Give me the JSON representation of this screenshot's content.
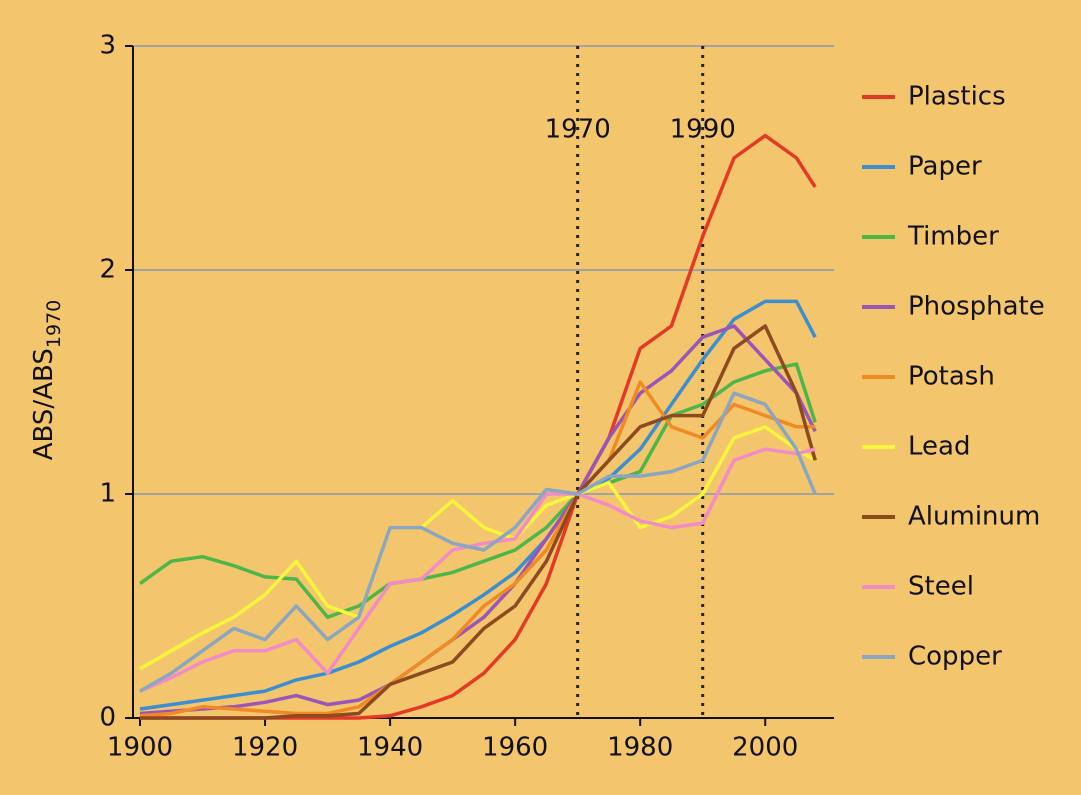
{
  "chart_data": {
    "type": "line",
    "ylabel": "ABS/ABS",
    "ylabel_sub": "1970",
    "x": [
      1900,
      1905,
      1910,
      1915,
      1920,
      1925,
      1930,
      1935,
      1940,
      1945,
      1950,
      1955,
      1960,
      1965,
      1970,
      1975,
      1980,
      1985,
      1990,
      1995,
      2000,
      2005,
      2008
    ],
    "xlim": [
      1900,
      2011
    ],
    "ylim": [
      0,
      3
    ],
    "xticks": [
      1900,
      1920,
      1940,
      1960,
      1980,
      2000
    ],
    "yticks": [
      0,
      1,
      2,
      3
    ],
    "grid": true,
    "vlines": [
      1970,
      1990
    ],
    "legend": "right",
    "series": [
      {
        "name": "Plastics",
        "color": "#e23a26",
        "values": [
          0,
          0,
          0,
          0,
          0,
          0,
          0,
          0,
          0.01,
          0.05,
          0.1,
          0.2,
          0.35,
          0.6,
          1.0,
          1.25,
          1.65,
          1.75,
          2.15,
          2.5,
          2.6,
          2.5,
          2.37
        ]
      },
      {
        "name": "Paper",
        "color": "#3b8ed0",
        "values": [
          0.04,
          0.06,
          0.08,
          0.1,
          0.12,
          0.17,
          0.2,
          0.25,
          0.32,
          0.38,
          0.46,
          0.55,
          0.65,
          0.8,
          1.0,
          1.07,
          1.2,
          1.4,
          1.6,
          1.78,
          1.86,
          1.86,
          1.7
        ]
      },
      {
        "name": "Timber",
        "color": "#4cb648",
        "values": [
          0.6,
          0.7,
          0.72,
          0.68,
          0.63,
          0.62,
          0.45,
          0.5,
          0.6,
          0.62,
          0.65,
          0.7,
          0.75,
          0.85,
          1.0,
          1.05,
          1.1,
          1.35,
          1.4,
          1.5,
          1.55,
          1.58,
          1.32
        ]
      },
      {
        "name": "Phosphate",
        "color": "#9a55b8",
        "values": [
          0.02,
          0.03,
          0.04,
          0.05,
          0.07,
          0.1,
          0.06,
          0.08,
          0.15,
          0.25,
          0.35,
          0.45,
          0.6,
          0.8,
          1.0,
          1.25,
          1.45,
          1.55,
          1.7,
          1.75,
          1.6,
          1.45,
          1.28
        ]
      },
      {
        "name": "Potash",
        "color": "#f08a24",
        "values": [
          0.01,
          0.02,
          0.05,
          0.04,
          0.03,
          0.02,
          0.02,
          0.05,
          0.15,
          0.25,
          0.35,
          0.5,
          0.6,
          0.75,
          1.0,
          1.15,
          1.5,
          1.3,
          1.25,
          1.4,
          1.35,
          1.3,
          1.3
        ]
      },
      {
        "name": "Lead",
        "color": "#f7f53c",
        "values": [
          0.22,
          0.3,
          0.38,
          0.45,
          0.55,
          0.7,
          0.5,
          0.45,
          0.85,
          0.85,
          0.97,
          0.85,
          0.8,
          0.95,
          1.0,
          1.05,
          0.85,
          0.9,
          1.0,
          1.25,
          1.3,
          1.2,
          1.15
        ]
      },
      {
        "name": "Aluminum",
        "color": "#8b4a1f",
        "values": [
          0,
          0,
          0,
          0,
          0,
          0.01,
          0.01,
          0.02,
          0.15,
          0.2,
          0.25,
          0.4,
          0.5,
          0.7,
          1.0,
          1.15,
          1.3,
          1.35,
          1.35,
          1.65,
          1.75,
          1.45,
          1.15
        ]
      },
      {
        "name": "Steel",
        "color": "#f28cc8",
        "values": [
          0.12,
          0.18,
          0.25,
          0.3,
          0.3,
          0.35,
          0.2,
          0.4,
          0.6,
          0.62,
          0.75,
          0.78,
          0.8,
          1.0,
          1.0,
          0.95,
          0.88,
          0.85,
          0.87,
          1.15,
          1.2,
          1.18,
          1.2
        ]
      },
      {
        "name": "Copper",
        "color": "#8aa6c1",
        "values": [
          0.12,
          0.2,
          0.3,
          0.4,
          0.35,
          0.5,
          0.35,
          0.45,
          0.85,
          0.85,
          0.78,
          0.75,
          0.85,
          1.02,
          1.0,
          1.08,
          1.08,
          1.1,
          1.15,
          1.45,
          1.4,
          1.2,
          1.0
        ]
      }
    ]
  }
}
